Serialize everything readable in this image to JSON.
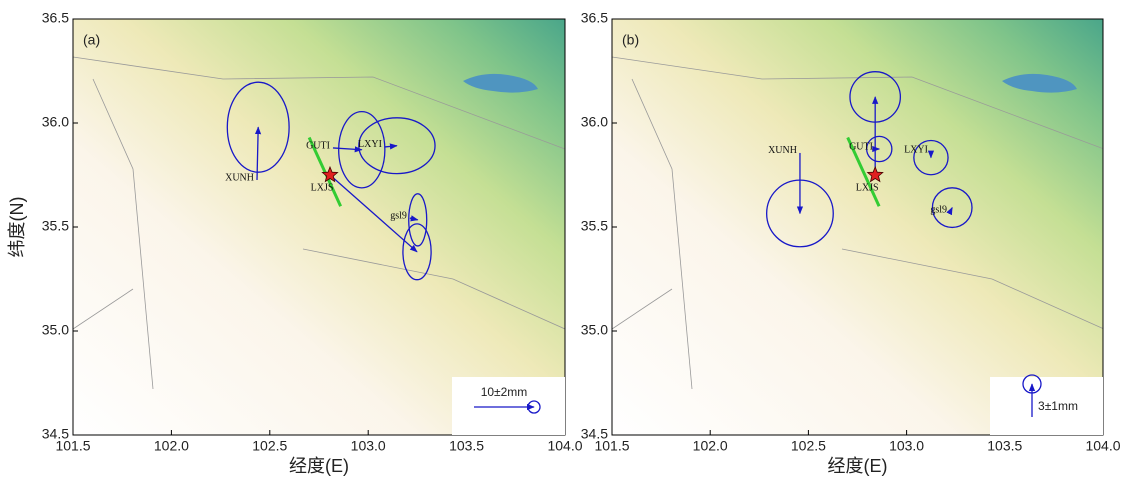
{
  "chart_data": [
    {
      "type": "vector",
      "panel_label": "(a)",
      "xlabel": "经度(E)",
      "ylabel": "纬度(N)",
      "xlim": [
        101.5,
        104.0
      ],
      "ylim": [
        34.5,
        36.5
      ],
      "xticks": [
        101.5,
        {
          "value": 102,
          "label": "102.0"
        },
        102.5,
        {
          "value": 103,
          "label": "103.0"
        },
        103.5,
        {
          "value": 104,
          "label": "104.0"
        }
      ],
      "yticks": [
        34.5,
        {
          "value": 35,
          "label": "35.0"
        },
        35.5,
        {
          "value": 36,
          "label": "36.0"
        },
        36.5
      ],
      "color": "#1818c8",
      "legend": {
        "label": "10±2mm",
        "value": 10,
        "error": 2,
        "direction": "east"
      },
      "stations": [
        {
          "name": "XUNH",
          "lon": 102.435,
          "lat": 35.726,
          "east": 0.2,
          "north": 8.8,
          "sigma_e": 10.3,
          "sigma_n": 15
        },
        {
          "name": "GUTI",
          "lon": 102.821,
          "lat": 35.88,
          "east": 4.8,
          "north": -0.3,
          "sigma_e": 7.7,
          "sigma_n": 12.7
        },
        {
          "name": "LXYI",
          "lon": 103.085,
          "lat": 35.885,
          "east": 2,
          "north": 0.2,
          "sigma_e": 12.7,
          "sigma_n": 9.3
        },
        {
          "name": "LXJS",
          "lon": 102.806,
          "lat": 35.75,
          "east": 14.5,
          "north": -12.8,
          "sigma_e": 4.7,
          "sigma_n": 9.3,
          "marker": "star"
        },
        {
          "name": "gsl9",
          "lon": 103.212,
          "lat": 35.543,
          "east": 1.3,
          "north": -0.3,
          "sigma_e": 3,
          "sigma_n": 8.7
        }
      ]
    },
    {
      "type": "vector",
      "panel_label": "(b)",
      "xlabel": "经度(E)",
      "xlim": [
        101.5,
        104.0
      ],
      "ylim": [
        34.5,
        36.5
      ],
      "xticks": [
        101.5,
        {
          "value": 102,
          "label": "102.0"
        },
        102.5,
        {
          "value": 103,
          "label": "103.0"
        },
        103.5,
        {
          "value": 104,
          "label": "104.0"
        }
      ],
      "yticks": [
        34.5,
        {
          "value": 35,
          "label": "35.0"
        },
        35.5,
        {
          "value": 36,
          "label": "36.0"
        },
        36.5
      ],
      "color": "#1818c8",
      "legend": {
        "label": "3±1mm",
        "value": 3,
        "error": 1,
        "direction": "north"
      },
      "stations": [
        {
          "name": "XUNH",
          "lon": 102.457,
          "lat": 35.856,
          "east": 0,
          "north": -5.5,
          "sigma_e": 3.7,
          "sigma_n": 3.7
        },
        {
          "name": "GUTI",
          "lon": 102.844,
          "lat": 35.875,
          "east": 0.3,
          "north": 0,
          "sigma_e": 1.4,
          "sigma_n": 1.4
        },
        {
          "name": "LXYI",
          "lon": 103.124,
          "lat": 35.86,
          "east": 0,
          "north": -0.5,
          "sigma_e": 1.9,
          "sigma_n": 1.9
        },
        {
          "name": "LXJS",
          "lon": 102.84,
          "lat": 35.75,
          "east": 0,
          "north": 7.1,
          "sigma_e": 2.8,
          "sigma_n": 2.8,
          "marker": "star"
        },
        {
          "name": "gsl9",
          "lon": 103.221,
          "lat": 35.572,
          "east": 0.2,
          "north": 0.4,
          "sigma_e": 2.2,
          "sigma_n": 2.2
        }
      ]
    }
  ]
}
